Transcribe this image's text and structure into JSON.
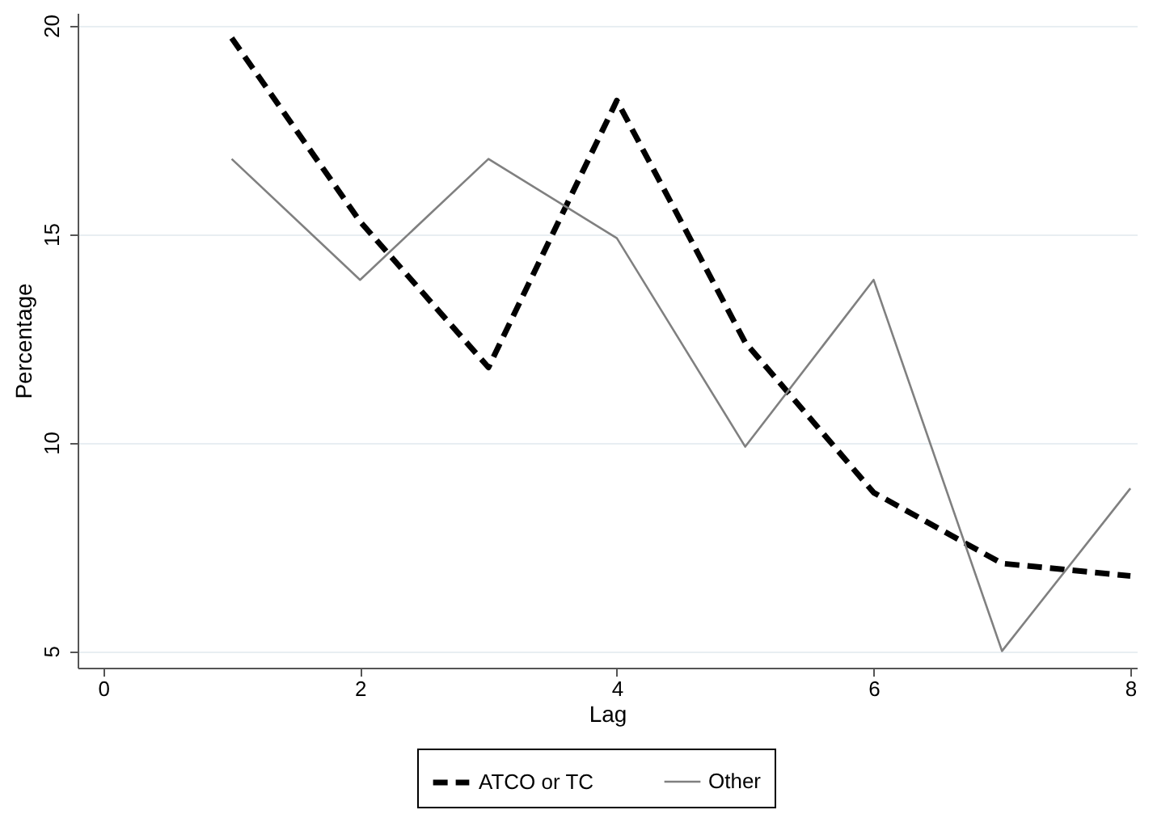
{
  "chart_data": {
    "type": "line",
    "xlabel": "Lag",
    "ylabel": "Percentage",
    "x": [
      1,
      2,
      3,
      4,
      5,
      6,
      7,
      8
    ],
    "series": [
      {
        "name": "ATCO or TC",
        "color": "#000000",
        "line_style": "dashed",
        "values": [
          19.7,
          15.3,
          11.8,
          18.2,
          12.4,
          8.8,
          7.1,
          6.8
        ]
      },
      {
        "name": "Other",
        "color": "#808080",
        "line_style": "solid",
        "values": [
          16.8,
          13.9,
          16.8,
          14.9,
          9.9,
          13.9,
          5.0,
          8.9
        ]
      }
    ],
    "xlim": [
      -0.2,
      8.05
    ],
    "xticks": [
      0,
      2,
      4,
      6,
      8
    ],
    "ylim": [
      4.6,
      20.3
    ],
    "yticks": [
      5,
      10,
      15,
      20
    ],
    "grid": "y",
    "legend": "bottom",
    "marker": "none"
  }
}
